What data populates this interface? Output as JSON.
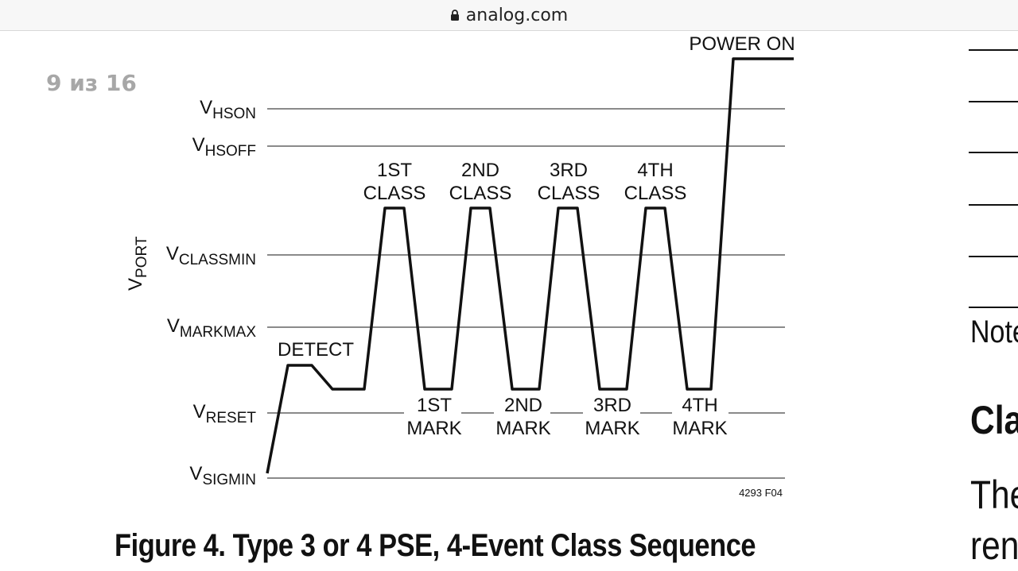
{
  "address_bar": {
    "url": "analog.com",
    "icon": "lock-icon"
  },
  "page_counter": "9 из 16",
  "figure": {
    "y_axis_label": {
      "main": "V",
      "sub": "PORT"
    },
    "levels": [
      {
        "main": "V",
        "sub": "HSON"
      },
      {
        "main": "V",
        "sub": "HSOFF"
      },
      {
        "main": "V",
        "sub": "CLASSMIN"
      },
      {
        "main": "V",
        "sub": "MARKMAX"
      },
      {
        "main": "V",
        "sub": "RESET"
      },
      {
        "main": "V",
        "sub": "SIGMIN"
      }
    ],
    "detect_label": "DETECT",
    "power_on_label": "POWER ON",
    "class_events": [
      {
        "line1": "1ST",
        "line2": "CLASS"
      },
      {
        "line1": "2ND",
        "line2": "CLASS"
      },
      {
        "line1": "3RD",
        "line2": "CLASS"
      },
      {
        "line1": "4TH",
        "line2": "CLASS"
      }
    ],
    "mark_events": [
      {
        "line1": "1ST",
        "line2": "MARK"
      },
      {
        "line1": "2ND",
        "line2": "MARK"
      },
      {
        "line1": "3RD",
        "line2": "MARK"
      },
      {
        "line1": "4TH",
        "line2": "MARK"
      }
    ],
    "figure_id": "4293 F04"
  },
  "caption": "Figure 4. Type 3 or 4 PSE, 4-Event Class Sequence",
  "right_column": {
    "note_label": "Note",
    "section_heading": "Cla",
    "body_line_1": "The",
    "body_line_2": "ren"
  }
}
